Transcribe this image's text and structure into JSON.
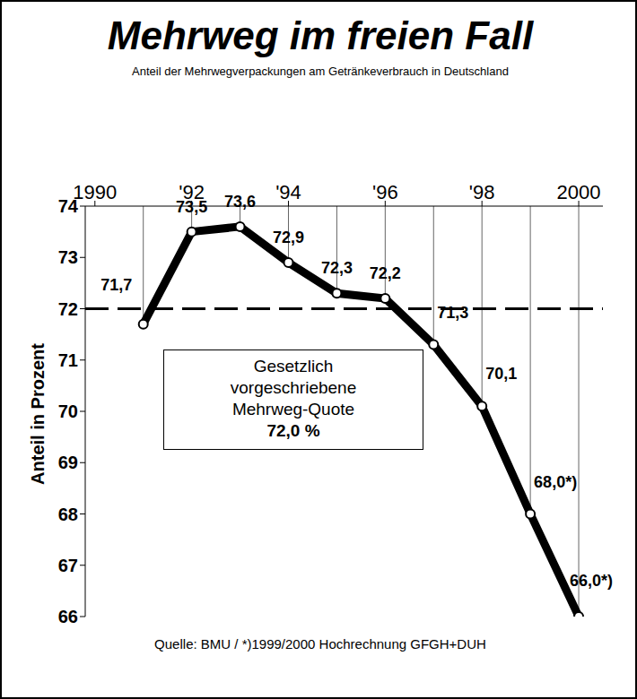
{
  "chart_data": {
    "type": "line",
    "title": "Mehrweg im freien Fall",
    "subtitle": "Anteil der Mehrwegverpackungen am Getränkeverbrauch in Deutschland",
    "y_label": "Anteil in Prozent",
    "source": "Quelle: BMU / *)1999/2000 Hochrechnung GFGH+DUH",
    "x": [
      1991,
      1992,
      1993,
      1994,
      1995,
      1996,
      1997,
      1998,
      1999,
      2000
    ],
    "values": [
      71.7,
      73.5,
      73.6,
      72.9,
      72.3,
      72.2,
      71.3,
      70.1,
      68.0,
      66.0
    ],
    "value_labels": [
      "71,7",
      "73,5",
      "73,6",
      "72,9",
      "72,3",
      "72,2",
      "71,3",
      "70,1",
      "68,0*)",
      "66,0*)"
    ],
    "color": "#000000",
    "marker": "circle",
    "data_labels": true,
    "xlim": [
      1989.8,
      2000.5
    ],
    "xticks": [
      1990,
      {
        "value": 1992,
        "label": "'92"
      },
      {
        "value": 1994,
        "label": "'94"
      },
      {
        "value": 1996,
        "label": "'96"
      },
      {
        "value": 1998,
        "label": "'98"
      },
      2000
    ],
    "ylim": [
      66,
      74
    ],
    "yticks": [
      66,
      67,
      68,
      69,
      70,
      71,
      72,
      73,
      74
    ],
    "grid": false,
    "annotation": {
      "value": 72,
      "label": [
        "Gesetzlich",
        "vorgeschriebene",
        "Mehrweg-Quote"
      ],
      "value_label": "72,0 %",
      "line_style": "dashed"
    }
  }
}
